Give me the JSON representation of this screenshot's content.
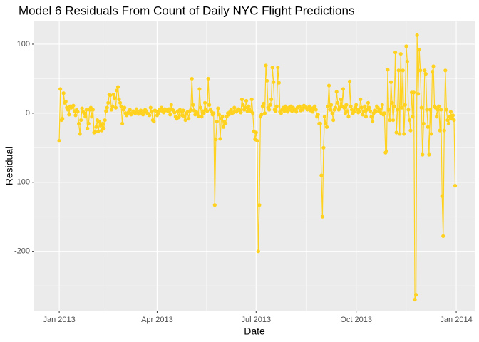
{
  "chart_data": {
    "type": "line",
    "title": "Model 6 Residuals From Count of Daily NYC Flight Predictions",
    "x_label": "Date",
    "y_label": "Residual",
    "color": "#FFD21F",
    "markers": true,
    "grid": true,
    "minor_grid": true,
    "xlim": [
      -23,
      382
    ],
    "ylim": [
      -286,
      133
    ],
    "xticks": [
      {
        "value": 0,
        "label": "Jan 2013"
      },
      {
        "value": 90,
        "label": "Apr 2013"
      },
      {
        "value": 181,
        "label": "Jul 2013"
      },
      {
        "value": 273,
        "label": "Oct 2013"
      },
      {
        "value": 365,
        "label": "Jan 2014"
      }
    ],
    "yticks": [
      -200,
      -100,
      0,
      100
    ],
    "x": [
      0,
      1,
      2,
      3,
      4,
      5,
      6,
      7,
      8,
      9,
      10,
      11,
      12,
      13,
      14,
      15,
      16,
      17,
      18,
      19,
      20,
      21,
      22,
      23,
      24,
      25,
      26,
      27,
      28,
      29,
      30,
      31,
      32,
      33,
      34,
      35,
      36,
      37,
      38,
      39,
      40,
      41,
      42,
      43,
      44,
      45,
      46,
      47,
      48,
      49,
      50,
      51,
      52,
      53,
      54,
      55,
      56,
      57,
      58,
      59,
      60,
      61,
      62,
      63,
      64,
      65,
      66,
      67,
      68,
      69,
      70,
      71,
      72,
      73,
      74,
      75,
      76,
      77,
      78,
      79,
      80,
      81,
      82,
      83,
      84,
      85,
      86,
      87,
      88,
      89,
      90,
      91,
      92,
      93,
      94,
      95,
      96,
      97,
      98,
      99,
      100,
      101,
      102,
      103,
      104,
      105,
      106,
      107,
      108,
      109,
      110,
      111,
      112,
      113,
      114,
      115,
      116,
      117,
      118,
      119,
      120,
      121,
      122,
      123,
      124,
      125,
      126,
      127,
      128,
      129,
      130,
      131,
      132,
      133,
      134,
      135,
      136,
      137,
      138,
      139,
      140,
      141,
      142,
      143,
      144,
      145,
      146,
      147,
      148,
      149,
      150,
      151,
      152,
      153,
      154,
      155,
      156,
      157,
      158,
      159,
      160,
      161,
      162,
      163,
      164,
      165,
      166,
      167,
      168,
      169,
      170,
      171,
      172,
      173,
      174,
      175,
      176,
      177,
      178,
      179,
      180,
      181,
      182,
      183,
      184,
      185,
      186,
      187,
      188,
      189,
      190,
      191,
      192,
      193,
      194,
      195,
      196,
      197,
      198,
      199,
      200,
      201,
      202,
      203,
      204,
      205,
      206,
      207,
      208,
      209,
      210,
      211,
      212,
      213,
      214,
      215,
      216,
      217,
      218,
      219,
      220,
      221,
      222,
      223,
      224,
      225,
      226,
      227,
      228,
      229,
      230,
      231,
      232,
      233,
      234,
      235,
      236,
      237,
      238,
      239,
      240,
      241,
      242,
      243,
      244,
      245,
      246,
      247,
      248,
      249,
      250,
      251,
      252,
      253,
      254,
      255,
      256,
      257,
      258,
      259,
      260,
      261,
      262,
      263,
      264,
      265,
      266,
      267,
      268,
      269,
      270,
      271,
      272,
      273,
      274,
      275,
      276,
      277,
      278,
      279,
      280,
      281,
      282,
      283,
      284,
      285,
      286,
      287,
      288,
      289,
      290,
      291,
      292,
      293,
      294,
      295,
      296,
      297,
      298,
      299,
      300,
      301,
      302,
      303,
      304,
      305,
      306,
      307,
      308,
      309,
      310,
      311,
      312,
      313,
      314,
      315,
      316,
      317,
      318,
      319,
      320,
      321,
      322,
      323,
      324,
      325,
      326,
      327,
      328,
      329,
      330,
      331,
      332,
      333,
      334,
      335,
      336,
      337,
      338,
      339,
      340,
      341,
      342,
      343,
      344,
      345,
      346,
      347,
      348,
      349,
      350,
      351,
      352,
      353,
      354,
      355,
      356,
      357,
      358,
      359,
      360,
      361,
      362,
      363,
      364
    ],
    "values": [
      -40,
      35,
      -10,
      -8,
      29,
      15,
      17,
      8,
      5,
      -2,
      10,
      8,
      10,
      11,
      3,
      -3,
      5,
      2,
      -15,
      -30,
      -10,
      7,
      2,
      0,
      -5,
      5,
      -22,
      -15,
      5,
      8,
      -5,
      5,
      -28,
      -27,
      -20,
      -10,
      -26,
      -12,
      -18,
      -25,
      -15,
      -22,
      -10,
      3,
      8,
      15,
      27,
      26,
      5,
      10,
      27,
      22,
      8,
      33,
      38,
      20,
      15,
      10,
      -15,
      5,
      8,
      0,
      -3,
      0,
      2,
      5,
      -2,
      0,
      3,
      1,
      0,
      6,
      2,
      -1,
      3,
      4,
      0,
      -2,
      2,
      5,
      3,
      0,
      -1,
      -3,
      8,
      2,
      -10,
      -12,
      4,
      3,
      -3,
      0,
      5,
      4,
      8,
      3,
      1,
      6,
      4,
      5,
      3,
      6,
      -2,
      12,
      5,
      4,
      1,
      -5,
      -8,
      3,
      -6,
      5,
      2,
      -3,
      4,
      -5,
      -10,
      0,
      2,
      -8,
      3,
      5,
      50,
      12,
      4,
      -2,
      2,
      0,
      -4,
      35,
      8,
      -5,
      3,
      0,
      15,
      5,
      3,
      50,
      12,
      5,
      2,
      -2,
      0,
      -133,
      -38,
      -12,
      7,
      -2,
      -37,
      -8,
      -5,
      -20,
      -12,
      -15,
      -5,
      0,
      -2,
      2,
      5,
      0,
      1,
      8,
      3,
      2,
      5,
      6,
      4,
      1,
      20,
      12,
      5,
      8,
      18,
      3,
      10,
      5,
      3,
      20,
      0,
      -26,
      -38,
      -28,
      -40,
      -200,
      -133,
      -5,
      -2,
      10,
      14,
      0,
      69,
      47,
      8,
      5,
      12,
      20,
      66,
      45,
      5,
      3,
      10,
      66,
      44,
      2,
      0,
      5,
      8,
      3,
      10,
      5,
      2,
      8,
      5,
      10,
      3,
      8,
      6,
      5,
      2,
      8,
      9,
      10,
      4,
      7,
      5,
      11,
      9,
      8,
      5,
      6,
      10,
      4,
      7,
      2,
      8,
      10,
      5,
      -5,
      -2,
      -15,
      -15,
      -90,
      -150,
      -50,
      -5,
      -15,
      -20,
      10,
      40,
      5,
      12,
      0,
      -10,
      5,
      8,
      31,
      15,
      5,
      8,
      20,
      10,
      35,
      8,
      0,
      12,
      3,
      -5,
      46,
      10,
      5,
      0,
      2,
      8,
      12,
      5,
      1,
      3,
      20,
      8,
      -2,
      3,
      10,
      -5,
      5,
      15,
      8,
      3,
      -5,
      -12,
      0,
      4,
      2,
      10,
      8,
      3,
      5,
      0,
      12,
      -2,
      0,
      -57,
      -55,
      63,
      5,
      -10,
      45,
      15,
      -10,
      10,
      88,
      -28,
      5,
      62,
      -30,
      86,
      8,
      62,
      -30,
      12,
      97,
      75,
      5,
      -10,
      -25,
      30,
      -5,
      30,
      -270,
      -263,
      113,
      28,
      92,
      62,
      8,
      -60,
      -15,
      62,
      57,
      5,
      -20,
      -60,
      5,
      -30,
      60,
      68,
      10,
      8,
      -5,
      5,
      10,
      -25,
      5,
      -120,
      -178,
      -25,
      62,
      5,
      -10,
      -15,
      -5,
      2,
      -8,
      -3,
      -10,
      -105
    ]
  }
}
